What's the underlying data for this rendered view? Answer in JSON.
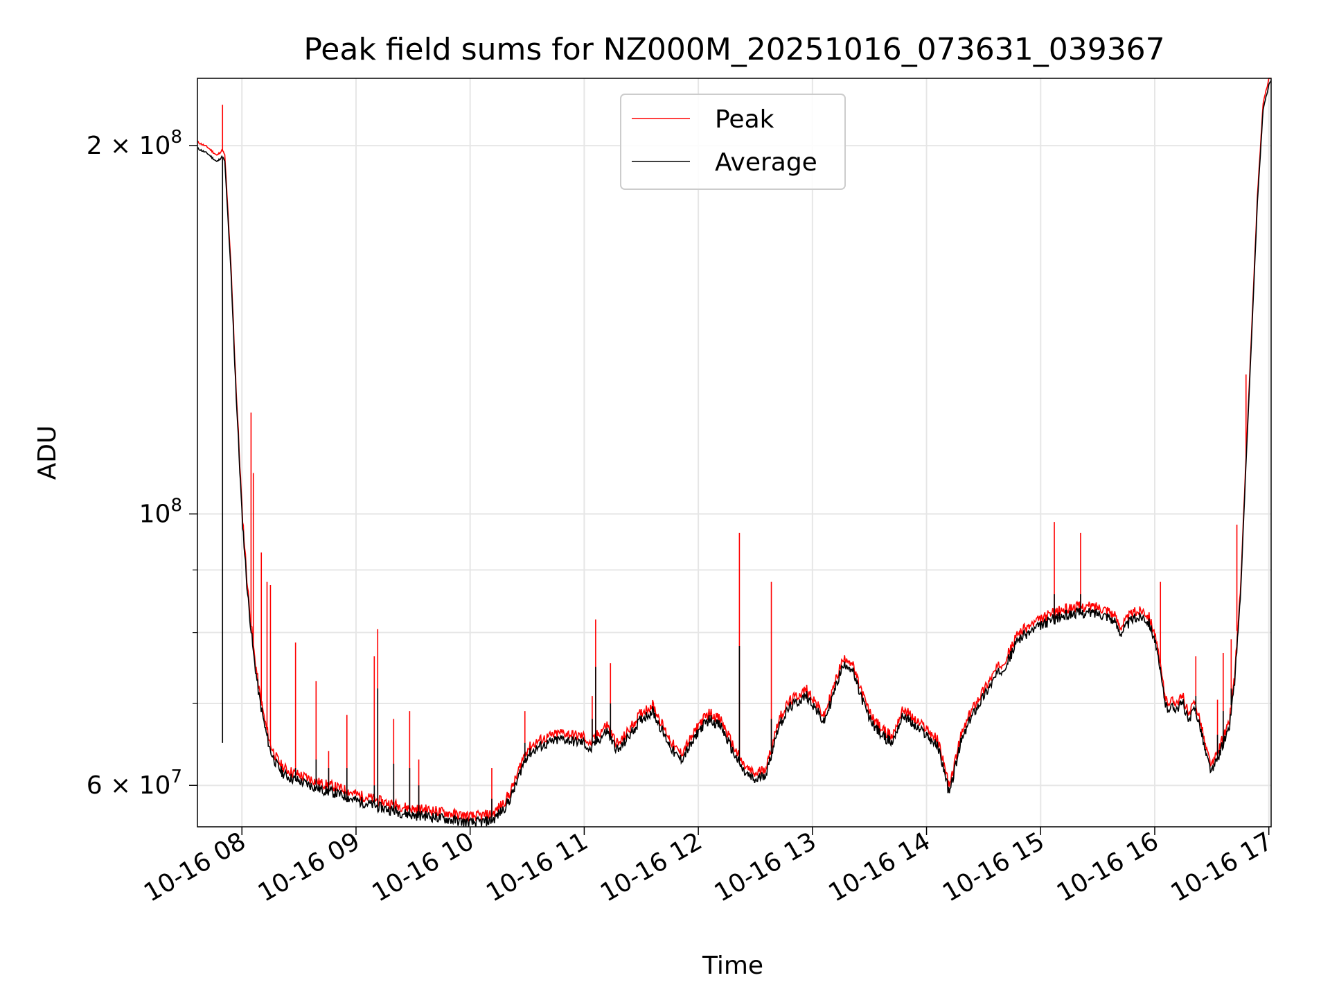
{
  "chart_data": {
    "type": "line",
    "title": "Peak field sums for NZ000M_20251016_073631_039367",
    "xlabel": "Time",
    "ylabel": "ADU",
    "yscale": "log",
    "grid": true,
    "legend_position": "upper center",
    "xlim": [
      7.61,
      17.02
    ],
    "ylim": [
      55500000,
      227000000
    ],
    "x_ticks": [
      {
        "value": 8,
        "label": "10-16 08"
      },
      {
        "value": 9,
        "label": "10-16 09"
      },
      {
        "value": 10,
        "label": "10-16 10"
      },
      {
        "value": 11,
        "label": "10-16 11"
      },
      {
        "value": 12,
        "label": "10-16 12"
      },
      {
        "value": 13,
        "label": "10-16 13"
      },
      {
        "value": 14,
        "label": "10-16 14"
      },
      {
        "value": 15,
        "label": "10-16 15"
      },
      {
        "value": 16,
        "label": "10-16 16"
      },
      {
        "value": 17,
        "label": "10-16 17"
      }
    ],
    "y_major_ticks": [
      {
        "value": 60000000,
        "base": "6 × 10",
        "exp": "7"
      },
      {
        "value": 100000000,
        "base": "10",
        "exp": "8"
      },
      {
        "value": 200000000,
        "base": "2 × 10",
        "exp": "8"
      }
    ],
    "y_minor_ticks": [
      70000000,
      80000000,
      90000000
    ],
    "series": [
      {
        "name": "Average",
        "color": "#000000",
        "x": [
          7.61,
          7.7,
          7.78,
          7.83,
          7.85,
          7.9,
          7.95,
          8.0,
          8.05,
          8.1,
          8.15,
          8.2,
          8.25,
          8.3,
          8.35,
          8.4,
          8.5,
          8.6,
          8.7,
          8.8,
          8.9,
          9.0,
          9.1,
          9.2,
          9.3,
          9.4,
          9.5,
          9.6,
          9.7,
          9.8,
          9.9,
          10.0,
          10.1,
          10.2,
          10.3,
          10.35,
          10.4,
          10.45,
          10.5,
          10.6,
          10.7,
          10.8,
          10.9,
          11.0,
          11.05,
          11.1,
          11.2,
          11.25,
          11.3,
          11.4,
          11.5,
          11.6,
          11.7,
          11.8,
          11.85,
          11.9,
          11.95,
          12.0,
          12.1,
          12.2,
          12.3,
          12.4,
          12.5,
          12.6,
          12.7,
          12.8,
          12.85,
          12.9,
          12.95,
          13.0,
          13.1,
          13.2,
          13.25,
          13.3,
          13.35,
          13.4,
          13.45,
          13.5,
          13.6,
          13.7,
          13.75,
          13.8,
          13.9,
          14.0,
          14.1,
          14.15,
          14.2,
          14.25,
          14.3,
          14.4,
          14.5,
          14.6,
          14.7,
          14.75,
          14.8,
          14.9,
          15.0,
          15.1,
          15.2,
          15.3,
          15.4,
          15.5,
          15.6,
          15.65,
          15.7,
          15.8,
          15.9,
          15.95,
          16.0,
          16.05,
          16.1,
          16.2,
          16.25,
          16.3,
          16.35,
          16.4,
          16.45,
          16.5,
          16.55,
          16.6,
          16.65,
          16.7,
          16.75,
          16.8,
          16.85,
          16.9,
          16.95,
          17.0,
          17.02
        ],
        "y": [
          199000000,
          197000000,
          194000000,
          196000000,
          194000000,
          160000000,
          125000000,
          100000000,
          86000000,
          77000000,
          71000000,
          67000000,
          64000000,
          62500000,
          61500000,
          61000000,
          60500000,
          60000000,
          59500000,
          59200000,
          58800000,
          58300000,
          58000000,
          57600000,
          57300000,
          57000000,
          56700000,
          56700000,
          56500000,
          56300000,
          56100000,
          55900000,
          56000000,
          56200000,
          57500000,
          58500000,
          60000000,
          62000000,
          63500000,
          64500000,
          65000000,
          65500000,
          65200000,
          65000000,
          64000000,
          65000000,
          66500000,
          65000000,
          64000000,
          66000000,
          68000000,
          69000000,
          66000000,
          63500000,
          63000000,
          64000000,
          65000000,
          66500000,
          68000000,
          67000000,
          64000000,
          61500000,
          60500000,
          61500000,
          67000000,
          69500000,
          70000000,
          70500000,
          71000000,
          70000000,
          67500000,
          72000000,
          74500000,
          75500000,
          74500000,
          72000000,
          70000000,
          68000000,
          66000000,
          65000000,
          67000000,
          68500000,
          67000000,
          66000000,
          64500000,
          62000000,
          59000000,
          62000000,
          65000000,
          68500000,
          71000000,
          73500000,
          75500000,
          77000000,
          79000000,
          80000000,
          81000000,
          82000000,
          82500000,
          83000000,
          83000000,
          83000000,
          82500000,
          81500000,
          80000000,
          82000000,
          82500000,
          81500000,
          79000000,
          74000000,
          69500000,
          69500000,
          70000000,
          67500000,
          69500000,
          67000000,
          63500000,
          61500000,
          63000000,
          65000000,
          66500000,
          73000000,
          85000000,
          110000000,
          140000000,
          180000000,
          214000000,
          224000000,
          226000000
        ],
        "peak_x": [
          7.83,
          8.08,
          8.47,
          8.65,
          8.76,
          8.92,
          9.16,
          9.19,
          9.33,
          9.47,
          9.55,
          10.19,
          10.48,
          11.07,
          11.1,
          11.23,
          12.36,
          12.64,
          15.12,
          15.35,
          16.05,
          16.36,
          16.55,
          16.6,
          16.67
        ],
        "peak_y": [
          65000000,
          80000000,
          62000000,
          63000000,
          62000000,
          62000000,
          60000000,
          72000000,
          62500000,
          62000000,
          60000000,
          58500000,
          65000000,
          68000000,
          75000000,
          70000000,
          78000000,
          68000000,
          86000000,
          86000000,
          75000000,
          71000000,
          66000000,
          69000000,
          72000000
        ]
      },
      {
        "name": "Peak",
        "color": "#ff0000",
        "offset_ratio": 1.012,
        "spikes": [
          {
            "x": 7.83,
            "y": 216000000
          },
          {
            "x": 8.08,
            "y": 121000000
          },
          {
            "x": 8.1,
            "y": 108000000
          },
          {
            "x": 8.17,
            "y": 93000000
          },
          {
            "x": 8.22,
            "y": 88000000
          },
          {
            "x": 8.25,
            "y": 87500000
          },
          {
            "x": 8.47,
            "y": 78500000
          },
          {
            "x": 8.65,
            "y": 73000000
          },
          {
            "x": 8.76,
            "y": 64000000
          },
          {
            "x": 8.92,
            "y": 68500000
          },
          {
            "x": 9.16,
            "y": 76500000
          },
          {
            "x": 9.19,
            "y": 80500000
          },
          {
            "x": 9.33,
            "y": 68000000
          },
          {
            "x": 9.47,
            "y": 69000000
          },
          {
            "x": 9.55,
            "y": 63000000
          },
          {
            "x": 10.19,
            "y": 62000000
          },
          {
            "x": 10.48,
            "y": 69000000
          },
          {
            "x": 11.07,
            "y": 71000000
          },
          {
            "x": 11.1,
            "y": 82000000
          },
          {
            "x": 11.23,
            "y": 75500000
          },
          {
            "x": 12.36,
            "y": 96500000
          },
          {
            "x": 12.64,
            "y": 88000000
          },
          {
            "x": 15.12,
            "y": 98500000
          },
          {
            "x": 15.35,
            "y": 96500000
          },
          {
            "x": 16.05,
            "y": 88000000
          },
          {
            "x": 16.36,
            "y": 76500000
          },
          {
            "x": 16.55,
            "y": 70500000
          },
          {
            "x": 16.6,
            "y": 77000000
          },
          {
            "x": 16.67,
            "y": 79000000
          },
          {
            "x": 16.72,
            "y": 98000000
          },
          {
            "x": 16.8,
            "y": 130000000
          }
        ]
      }
    ]
  }
}
